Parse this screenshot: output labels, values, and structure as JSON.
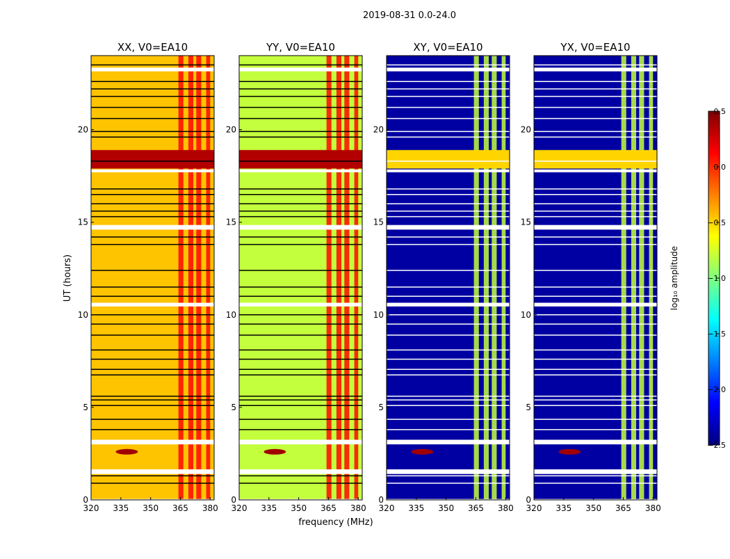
{
  "figure": {
    "suptitle": "2019-08-31 0.0-24.0",
    "ylabel": "UT (hours)",
    "xlabel": "frequency (MHz)"
  },
  "colorbar": {
    "label": "log₁₀ amplitude",
    "ticks": [
      "0.5",
      "0.0",
      "−0.5",
      "−1.0",
      "−1.5",
      "−2.0",
      "−2.5"
    ],
    "vmin": -2.5,
    "vmax": 0.5
  },
  "colors": {
    "masked": "#ffffff",
    "jet_low": "#00007f",
    "jet_high": "#7f0000"
  },
  "chart_data": [
    {
      "type": "heatmap",
      "title": "XX, V0=EA10",
      "kind": "auto",
      "base_value": -0.45,
      "xlim": [
        320,
        382
      ],
      "ylim": [
        0,
        24
      ],
      "xticks": [
        "320",
        "335",
        "350",
        "365",
        "380"
      ],
      "yticks": [
        "0",
        "5",
        "10",
        "15",
        "20"
      ]
    },
    {
      "type": "heatmap",
      "title": "YY, V0=EA10",
      "kind": "auto",
      "base_value": -0.8,
      "xlim": [
        320,
        382
      ],
      "ylim": [
        0,
        24
      ],
      "xticks": [
        "320",
        "335",
        "350",
        "365",
        "380"
      ],
      "yticks": [
        "0",
        "5",
        "10",
        "15",
        "20"
      ]
    },
    {
      "type": "heatmap",
      "title": "XY, V0=EA10",
      "kind": "cross",
      "base_value": -2.4,
      "xlim": [
        320,
        382
      ],
      "ylim": [
        0,
        24
      ],
      "xticks": [
        "320",
        "335",
        "350",
        "365",
        "380"
      ],
      "yticks": [
        "0",
        "5",
        "10",
        "15",
        "20"
      ]
    },
    {
      "type": "heatmap",
      "title": "YX, V0=EA10",
      "kind": "cross",
      "base_value": -2.4,
      "xlim": [
        320,
        382
      ],
      "ylim": [
        0,
        24
      ],
      "xticks": [
        "320",
        "335",
        "350",
        "365",
        "380"
      ],
      "yticks": [
        "0",
        "5",
        "10",
        "15",
        "20"
      ]
    }
  ],
  "data_features": {
    "masked_time_bands_hours": [
      [
        0.0,
        0.05
      ],
      [
        1.4,
        1.65
      ],
      [
        3.0,
        3.25
      ],
      [
        10.45,
        10.65
      ],
      [
        14.6,
        14.85
      ],
      [
        17.7,
        17.85
      ],
      [
        23.15,
        23.35
      ]
    ],
    "flag_lines_hours": [
      0.9,
      1.3,
      3.8,
      4.35,
      5.1,
      5.4,
      5.6,
      6.75,
      7.05,
      7.6,
      8.1,
      8.9,
      9.5,
      10.0,
      11.0,
      11.5,
      12.4,
      13.8,
      14.2,
      15.3,
      15.6,
      16.0,
      16.5,
      16.8,
      18.3,
      19.6,
      19.9,
      20.6,
      21.2,
      21.8,
      22.2,
      22.6,
      23.5
    ],
    "bright_time_band_hours": [
      17.9,
      18.9
    ],
    "bright_band_value": 0.35,
    "rfi_burst": {
      "time_hours": 2.6,
      "freq_mhz": 338,
      "value": 0.4
    },
    "rfi_channels_mhz": [
      [
        364,
        366.5
      ],
      [
        369,
        371.5
      ],
      [
        373,
        375.5
      ],
      [
        378,
        380
      ]
    ],
    "rfi_channel_value": 0.1
  }
}
